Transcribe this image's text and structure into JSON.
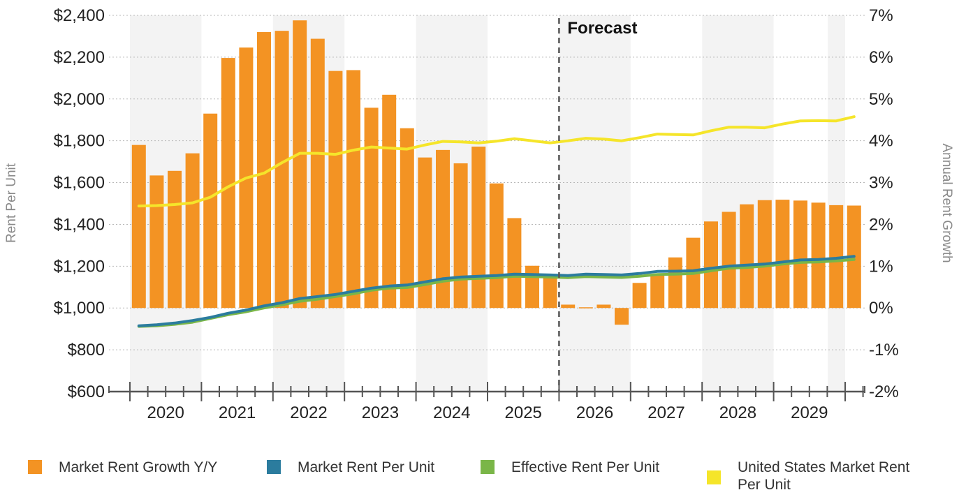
{
  "chart_data": {
    "type": "bar+line",
    "annotation": "Forecast",
    "forecast_start_index": 24,
    "left_axis": {
      "title": "Rent Per Unit",
      "range": [
        600,
        2400
      ],
      "ticks": [
        600,
        800,
        1000,
        1200,
        1400,
        1600,
        1800,
        2000,
        2200,
        2400
      ],
      "tick_labels": [
        "$600",
        "$800",
        "$1,000",
        "$1,200",
        "$1,400",
        "$1,600",
        "$1,800",
        "$2,000",
        "$2,200",
        "$2,400"
      ]
    },
    "right_axis": {
      "title": "Annual Rent Growth",
      "range": [
        -2,
        7
      ],
      "ticks": [
        -2,
        -1,
        0,
        1,
        2,
        3,
        4,
        5,
        6,
        7
      ],
      "tick_labels": [
        "-2%",
        "-1%",
        "0%",
        "1%",
        "2%",
        "3%",
        "4%",
        "5%",
        "6%",
        "7%"
      ]
    },
    "years": [
      "2020",
      "2021",
      "2022",
      "2023",
      "2024",
      "2025",
      "2026",
      "2027",
      "2028",
      "2029"
    ],
    "quarters_per_year": 4,
    "grid": true,
    "series": [
      {
        "name": "Market Rent Growth Y/Y",
        "type": "bar",
        "axis": "right",
        "color": "#F39323",
        "values": [
          3.9,
          3.17,
          3.28,
          3.7,
          4.65,
          5.98,
          6.23,
          6.6,
          6.63,
          6.88,
          6.44,
          5.67,
          5.69,
          4.79,
          5.1,
          4.3,
          3.6,
          3.78,
          3.46,
          3.86,
          2.98,
          2.15,
          1.01,
          0.72,
          0.08,
          0.0,
          0.08,
          -0.4,
          0.6,
          0.78,
          1.21,
          1.68,
          2.07,
          2.3,
          2.48,
          2.58,
          2.59,
          2.57,
          2.52,
          2.46,
          2.45
        ]
      },
      {
        "name": "Market Rent Per Unit",
        "type": "line",
        "axis": "left",
        "color": "#2B7C9E",
        "values": [
          915,
          920,
          928,
          940,
          955,
          975,
          990,
          1010,
          1025,
          1045,
          1055,
          1065,
          1080,
          1095,
          1105,
          1110,
          1125,
          1140,
          1148,
          1152,
          1155,
          1162,
          1160,
          1158,
          1155,
          1162,
          1160,
          1158,
          1165,
          1175,
          1176,
          1178,
          1190,
          1200,
          1205,
          1210,
          1220,
          1230,
          1232,
          1238,
          1247
        ]
      },
      {
        "name": "Effective Rent Per Unit",
        "type": "line",
        "axis": "left",
        "color": "#7AB648",
        "values": [
          912,
          915,
          922,
          932,
          950,
          968,
          982,
          1000,
          1015,
          1032,
          1042,
          1055,
          1068,
          1085,
          1095,
          1098,
          1112,
          1128,
          1138,
          1142,
          1145,
          1152,
          1150,
          1148,
          1145,
          1150,
          1148,
          1146,
          1152,
          1160,
          1162,
          1165,
          1178,
          1190,
          1194,
          1200,
          1210,
          1218,
          1220,
          1225,
          1232
        ]
      },
      {
        "name": "United States Market Rent Per Unit",
        "type": "line",
        "axis": "left",
        "color": "#F5E52A",
        "values": [
          1488,
          1490,
          1495,
          1503,
          1530,
          1580,
          1622,
          1645,
          1695,
          1740,
          1740,
          1735,
          1755,
          1770,
          1765,
          1760,
          1780,
          1797,
          1795,
          1790,
          1798,
          1810,
          1800,
          1790,
          1800,
          1812,
          1808,
          1800,
          1815,
          1832,
          1830,
          1828,
          1848,
          1865,
          1865,
          1862,
          1880,
          1895,
          1896,
          1895,
          1915
        ]
      }
    ]
  }
}
